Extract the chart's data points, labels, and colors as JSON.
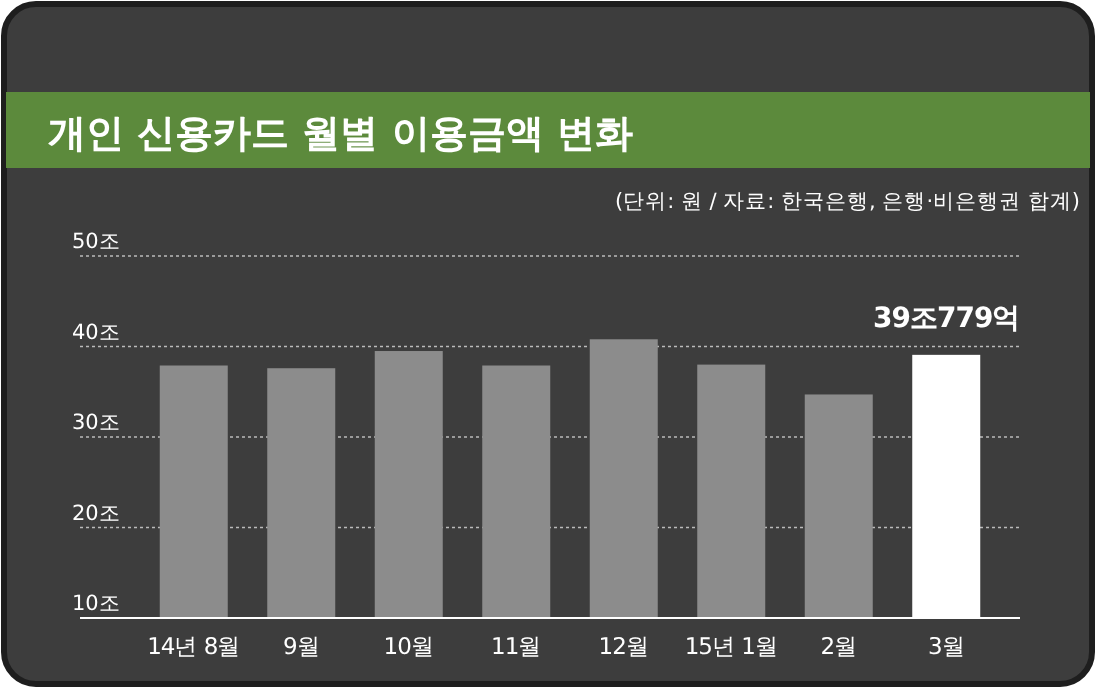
{
  "chart_data": {
    "type": "bar",
    "title": "개인 신용카드 월별 이용금액 변화",
    "subtitle": "(단위: 원 / 자료: 한국은행, 은행·비은행권 합계)",
    "categories": [
      "14년 8월",
      "9월",
      "10월",
      "11월",
      "12월",
      "15년 1월",
      "2월",
      "3월"
    ],
    "values": [
      37.9,
      37.6,
      39.5,
      37.9,
      40.8,
      38.0,
      34.7,
      39.0779
    ],
    "colors": [
      "#8c8c8c",
      "#8c8c8c",
      "#8c8c8c",
      "#8c8c8c",
      "#8c8c8c",
      "#8c8c8c",
      "#8c8c8c",
      "#ffffff"
    ],
    "value_labels": [
      null,
      null,
      null,
      null,
      null,
      null,
      null,
      "39조779억"
    ],
    "ylim": [
      10,
      50
    ],
    "yticks": [
      {
        "value": 10,
        "label": "10조"
      },
      {
        "value": 20,
        "label": "20조"
      },
      {
        "value": 30,
        "label": "30조"
      },
      {
        "value": 40,
        "label": "40조"
      },
      {
        "value": 50,
        "label": "50조"
      }
    ],
    "grid": "y"
  }
}
